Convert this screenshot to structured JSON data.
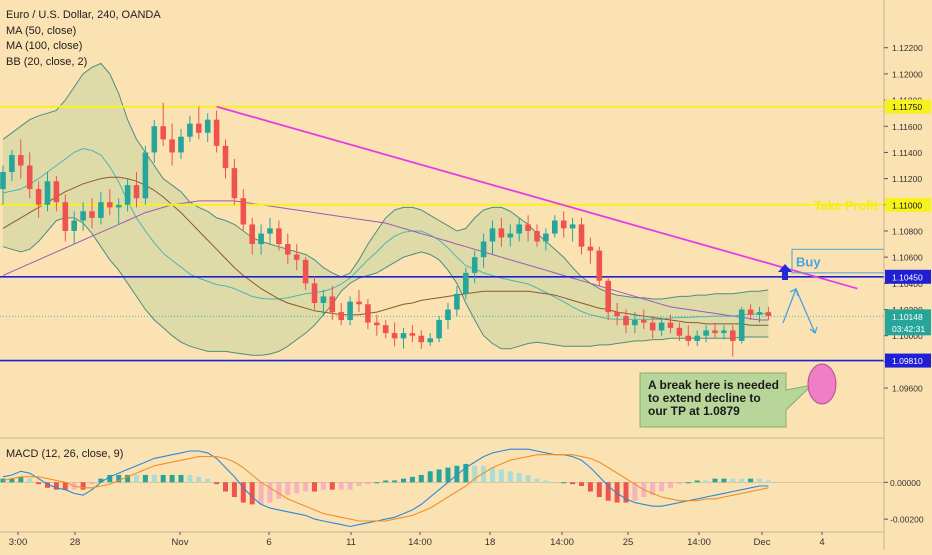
{
  "title": "Euro / U.S. Dollar, 240, OANDA",
  "indicators": [
    "MA (50, close)",
    "MA (100, close)",
    "BB (20, close, 2)"
  ],
  "macd_label": "MACD (12, 26, close, 9)",
  "colors": {
    "background": "#fbe2b3",
    "up_candle": "#26a69a",
    "down_candle": "#ef5350",
    "resistance_line": "#f7f21e",
    "support_line": "#1f1fd6",
    "trendline": "#e83be6",
    "ma50": "#8d5a2b",
    "ma100": "#9b5ab8",
    "bb_basis": "#4fb6ab",
    "bb_band": "#4e8d7e",
    "bb_fill": "#d6d8a5",
    "note_fill": "#b8d59a",
    "buy_arrow": "#1f2bd6",
    "target_circle": "#ee7ec5",
    "macd_line": "#2a8ad8",
    "signal_line": "#f0902a",
    "hist_up": "#26a69a",
    "hist_down": "#ef5350"
  },
  "chart_data": [
    {
      "type": "candlestick",
      "symbol": "Euro / U.S. Dollar",
      "interval": "240",
      "source": "OANDA",
      "y_range": [
        1.0944,
        1.1232
      ],
      "y_ticks": [
        1.122,
        1.12,
        1.118,
        1.116,
        1.114,
        1.112,
        1.11,
        1.108,
        1.106,
        1.104,
        1.102,
        1.1,
        1.098,
        1.096
      ],
      "y_tick_labels": [
        "1.12200",
        "1.12000",
        "1.11800",
        "1.11600",
        "1.11400",
        "1.11200",
        "1.11000",
        "1.10800",
        "1.10600",
        "1.10400",
        "1.10200",
        "1.10000",
        "1.09800",
        "1.09600"
      ],
      "x_tick_labels": [
        "3:00",
        "28",
        "Nov",
        "6",
        "11",
        "14:00",
        "18",
        "14:00",
        "25",
        "14:00",
        "Dec",
        "4"
      ],
      "price_levels": [
        {
          "label": "1.11750",
          "value": 1.1175,
          "kind": "resistance"
        },
        {
          "label": "1.11000",
          "value": 1.11,
          "kind": "take-profit"
        },
        {
          "label": "1.10450",
          "value": 1.1045,
          "kind": "support"
        },
        {
          "label": "1.09810",
          "value": 1.0981,
          "kind": "support"
        }
      ],
      "current_price": {
        "label": "1.10148",
        "value": 1.10148,
        "countdown": "03:42:31"
      },
      "trendline": {
        "from": {
          "bar": 24,
          "price": 1.1175
        },
        "to": {
          "bar": 96,
          "price": 1.1036
        }
      },
      "annotations": {
        "take_profit": "Take Profit",
        "buy": "Buy",
        "note": "A break here is needed\nto extend decline to\nour TP at 1.0879"
      },
      "candles_ohlc": [
        [
          1.1112,
          1.113,
          1.11,
          1.1125
        ],
        [
          1.1125,
          1.1142,
          1.1118,
          1.1138
        ],
        [
          1.1138,
          1.115,
          1.112,
          1.113
        ],
        [
          1.113,
          1.114,
          1.1105,
          1.1112
        ],
        [
          1.1112,
          1.1118,
          1.109,
          1.11
        ],
        [
          1.11,
          1.1125,
          1.1095,
          1.1118
        ],
        [
          1.1118,
          1.1122,
          1.1095,
          1.1102
        ],
        [
          1.1102,
          1.1108,
          1.1072,
          1.108
        ],
        [
          1.108,
          1.1095,
          1.107,
          1.1088
        ],
        [
          1.1088,
          1.1102,
          1.108,
          1.1095
        ],
        [
          1.1095,
          1.1105,
          1.1082,
          1.109
        ],
        [
          1.109,
          1.111,
          1.1085,
          1.1102
        ],
        [
          1.1102,
          1.1112,
          1.1092,
          1.1098
        ],
        [
          1.1098,
          1.1105,
          1.1085,
          1.11
        ],
        [
          1.11,
          1.112,
          1.1095,
          1.1115
        ],
        [
          1.1115,
          1.1125,
          1.1098,
          1.1105
        ],
        [
          1.1105,
          1.1145,
          1.11,
          1.114
        ],
        [
          1.114,
          1.1165,
          1.1132,
          1.116
        ],
        [
          1.116,
          1.1178,
          1.1145,
          1.115
        ],
        [
          1.115,
          1.1162,
          1.113,
          1.114
        ],
        [
          1.114,
          1.1158,
          1.1135,
          1.1152
        ],
        [
          1.1152,
          1.1168,
          1.1148,
          1.1162
        ],
        [
          1.1162,
          1.1175,
          1.115,
          1.1155
        ],
        [
          1.1155,
          1.117,
          1.1148,
          1.1165
        ],
        [
          1.1165,
          1.1172,
          1.114,
          1.1145
        ],
        [
          1.1145,
          1.115,
          1.112,
          1.1128
        ],
        [
          1.1128,
          1.1135,
          1.11,
          1.1105
        ],
        [
          1.1105,
          1.1112,
          1.108,
          1.1085
        ],
        [
          1.1085,
          1.109,
          1.1062,
          1.107
        ],
        [
          1.107,
          1.1085,
          1.1062,
          1.1078
        ],
        [
          1.1078,
          1.109,
          1.107,
          1.1082
        ],
        [
          1.1082,
          1.1088,
          1.1065,
          1.107
        ],
        [
          1.107,
          1.1078,
          1.1055,
          1.1062
        ],
        [
          1.1062,
          1.107,
          1.105,
          1.1058
        ],
        [
          1.1058,
          1.106,
          1.1035,
          1.104
        ],
        [
          1.104,
          1.1045,
          1.102,
          1.1025
        ],
        [
          1.1025,
          1.1035,
          1.1015,
          1.103
        ],
        [
          1.103,
          1.1038,
          1.1012,
          1.1018
        ],
        [
          1.1018,
          1.1025,
          1.1008,
          1.1012
        ],
        [
          1.1012,
          1.103,
          1.1008,
          1.1026
        ],
        [
          1.1026,
          1.1035,
          1.1018,
          1.1024
        ],
        [
          1.1024,
          1.1028,
          1.1005,
          1.101
        ],
        [
          1.101,
          1.1016,
          1.1,
          1.1008
        ],
        [
          1.1008,
          1.1012,
          1.0998,
          1.1002
        ],
        [
          1.1002,
          1.101,
          1.0992,
          1.0998
        ],
        [
          1.0998,
          1.1006,
          1.099,
          1.1002
        ],
        [
          1.1002,
          1.1008,
          1.0995,
          1.1
        ],
        [
          1.1,
          1.1004,
          1.099,
          1.0995
        ],
        [
          1.0995,
          1.1002,
          1.0992,
          1.0998
        ],
        [
          1.0998,
          1.1015,
          1.0995,
          1.1012
        ],
        [
          1.1012,
          1.1025,
          1.1005,
          1.102
        ],
        [
          1.102,
          1.1038,
          1.1015,
          1.1032
        ],
        [
          1.1032,
          1.1052,
          1.1028,
          1.1048
        ],
        [
          1.1048,
          1.1065,
          1.104,
          1.106
        ],
        [
          1.106,
          1.1078,
          1.1052,
          1.1072
        ],
        [
          1.1072,
          1.1088,
          1.1062,
          1.1082
        ],
        [
          1.1082,
          1.109,
          1.1068,
          1.1075
        ],
        [
          1.1075,
          1.1085,
          1.1068,
          1.1078
        ],
        [
          1.1078,
          1.109,
          1.1072,
          1.1085
        ],
        [
          1.1085,
          1.1092,
          1.1072,
          1.108
        ],
        [
          1.108,
          1.1085,
          1.1068,
          1.1072
        ],
        [
          1.1072,
          1.1082,
          1.1065,
          1.1078
        ],
        [
          1.1078,
          1.1092,
          1.1075,
          1.1088
        ],
        [
          1.1088,
          1.1095,
          1.1075,
          1.1082
        ],
        [
          1.1082,
          1.109,
          1.1072,
          1.1085
        ],
        [
          1.1085,
          1.109,
          1.1062,
          1.1068
        ],
        [
          1.1068,
          1.1075,
          1.1055,
          1.1065
        ],
        [
          1.1065,
          1.1068,
          1.1038,
          1.1042
        ],
        [
          1.1042,
          1.1045,
          1.1012,
          1.1018
        ],
        [
          1.1018,
          1.1025,
          1.1008,
          1.1015
        ],
        [
          1.1015,
          1.102,
          1.1002,
          1.1008
        ],
        [
          1.1008,
          1.1018,
          1.1002,
          1.1012
        ],
        [
          1.1012,
          1.102,
          1.1005,
          1.101
        ],
        [
          1.101,
          1.1015,
          1.0998,
          1.1004
        ],
        [
          1.1004,
          1.1014,
          1.1,
          1.101
        ],
        [
          1.101,
          1.1016,
          1.1002,
          1.1006
        ],
        [
          1.1006,
          1.101,
          1.0996,
          1.1
        ],
        [
          1.1,
          1.1008,
          1.0992,
          1.0996
        ],
        [
          1.0996,
          1.1004,
          1.0992,
          1.1
        ],
        [
          1.1,
          1.1008,
          1.0995,
          1.1004
        ],
        [
          1.1004,
          1.101,
          1.0998,
          1.1002
        ],
        [
          1.1002,
          1.1008,
          1.0997,
          1.1004
        ],
        [
          1.1004,
          1.1008,
          1.0984,
          1.0996
        ],
        [
          1.0996,
          1.1022,
          1.0994,
          1.102
        ],
        [
          1.102,
          1.1024,
          1.1012,
          1.1016
        ],
        [
          1.1016,
          1.1022,
          1.101,
          1.1018
        ],
        [
          1.1018,
          1.1022,
          1.1012,
          1.1015
        ]
      ],
      "ma50": [
        1.1082,
        1.1086,
        1.109,
        1.1094,
        1.1098,
        1.1102,
        1.1106,
        1.111,
        1.1113,
        1.1116,
        1.1118,
        1.112,
        1.1121,
        1.1121,
        1.112,
        1.1118,
        1.1115,
        1.1111,
        1.1106,
        1.11,
        1.1094,
        1.1087,
        1.108,
        1.1073,
        1.1066,
        1.1059,
        1.1052,
        1.1046,
        1.1041,
        1.1036,
        1.1032,
        1.1028,
        1.1025,
        1.1023,
        1.1021,
        1.1019,
        1.1018,
        1.1017,
        1.1016,
        1.1016,
        1.1016,
        1.1017,
        1.1018,
        1.102,
        1.1022,
        1.1024,
        1.1025,
        1.1027,
        1.1028,
        1.1029,
        1.103,
        1.1031,
        1.1032,
        1.1033,
        1.1034,
        1.1034,
        1.1034,
        1.1034,
        1.1034,
        1.1034,
        1.1033,
        1.1032,
        1.1031,
        1.1029,
        1.1027,
        1.1025,
        1.1023,
        1.1021,
        1.102,
        1.1018,
        1.1017,
        1.1016,
        1.1015,
        1.1014,
        1.1013,
        1.1012,
        1.1011,
        1.101,
        1.101,
        1.1009,
        1.1009,
        1.1009,
        1.1009,
        1.1009,
        1.1008,
        1.1008,
        1.1008
      ],
      "ma100": [
        1.1046,
        1.1049,
        1.1052,
        1.1055,
        1.1058,
        1.1061,
        1.1064,
        1.1067,
        1.107,
        1.1073,
        1.1076,
        1.1079,
        1.1082,
        1.1085,
        1.1088,
        1.1091,
        1.1094,
        1.1096,
        1.1098,
        1.11,
        1.1101,
        1.1102,
        1.1103,
        1.1103,
        1.1103,
        1.1103,
        1.1103,
        1.1102,
        1.1101,
        1.11,
        1.1099,
        1.1098,
        1.1097,
        1.1096,
        1.1095,
        1.1094,
        1.1093,
        1.1092,
        1.1091,
        1.109,
        1.1089,
        1.1088,
        1.1087,
        1.1086,
        1.1084,
        1.1082,
        1.108,
        1.1078,
        1.1076,
        1.1074,
        1.1072,
        1.107,
        1.1068,
        1.1066,
        1.1064,
        1.1062,
        1.106,
        1.1058,
        1.1056,
        1.1054,
        1.1052,
        1.105,
        1.1048,
        1.1046,
        1.1044,
        1.1042,
        1.104,
        1.1038,
        1.1036,
        1.1034,
        1.1032,
        1.103,
        1.1028,
        1.1026,
        1.1024,
        1.1022,
        1.1021,
        1.102,
        1.1019,
        1.1018,
        1.1017,
        1.1016,
        1.1015,
        1.1014,
        1.1013,
        1.1012,
        1.1012
      ],
      "bb_upper": [
        1.115,
        1.1155,
        1.116,
        1.1165,
        1.1168,
        1.117,
        1.1172,
        1.118,
        1.119,
        1.12,
        1.1205,
        1.1208,
        1.12,
        1.1185,
        1.1165,
        1.115,
        1.114,
        1.113,
        1.112,
        1.1115,
        1.111,
        1.1102,
        1.1098,
        1.1095,
        1.109,
        1.1088,
        1.1085,
        1.108,
        1.1075,
        1.1072,
        1.107,
        1.1068,
        1.1066,
        1.1064,
        1.1062,
        1.1058,
        1.1052,
        1.1048,
        1.1045,
        1.1048,
        1.1058,
        1.107,
        1.108,
        1.109,
        1.1096,
        1.1098,
        1.1098,
        1.1096,
        1.1092,
        1.1088,
        1.1084,
        1.108,
        1.1082,
        1.109,
        1.1096,
        1.1098,
        1.1098,
        1.1095,
        1.109,
        1.1085,
        1.1078,
        1.1072,
        1.1066,
        1.106,
        1.1052,
        1.1045,
        1.104,
        1.1036,
        1.1033,
        1.1031,
        1.103,
        1.1029,
        1.1029,
        1.1028,
        1.1028,
        1.1029,
        1.103,
        1.103,
        1.1031,
        1.1031,
        1.1032,
        1.1032,
        1.1032,
        1.1033,
        1.1034,
        1.1034,
        1.1035
      ],
      "bb_lower": [
        1.1068,
        1.1066,
        1.1064,
        1.1066,
        1.1072,
        1.108,
        1.1088,
        1.109,
        1.109,
        1.1086,
        1.1078,
        1.1068,
        1.1058,
        1.105,
        1.104,
        1.103,
        1.102,
        1.1012,
        1.1006,
        1.1,
        1.0995,
        1.0992,
        1.099,
        1.0988,
        1.0988,
        1.0988,
        1.0987,
        1.0986,
        1.0985,
        1.0985,
        1.0986,
        1.0988,
        1.0992,
        1.0997,
        1.1002,
        1.1008,
        1.1016,
        1.1024,
        1.1034,
        1.104,
        1.1044,
        1.1046,
        1.1048,
        1.1052,
        1.1056,
        1.106,
        1.1062,
        1.1064,
        1.1062,
        1.1058,
        1.105,
        1.104,
        1.1025,
        1.1012,
        1.1,
        1.0994,
        1.099,
        1.099,
        1.0992,
        1.0994,
        1.0995,
        1.0994,
        1.0993,
        1.0992,
        1.0992,
        1.0992,
        1.0992,
        1.0993,
        1.0993,
        1.0994,
        1.0995,
        1.0996,
        1.0996,
        1.0997,
        1.0997,
        1.0998,
        1.0998,
        1.0998,
        1.0998,
        1.0998,
        1.0998,
        1.0998,
        1.0998,
        1.0999,
        1.0999,
        1.0999,
        1.0999
      ]
    },
    {
      "type": "macd",
      "label": "MACD (12, 26, close, 9)",
      "y_range": [
        -0.0027,
        0.0023
      ],
      "y_ticks": [
        0.0,
        -0.002
      ],
      "y_tick_labels": [
        "0.00000",
        "-0.00200"
      ],
      "macd": [
        0.0003,
        0.0004,
        0.0006,
        0.0005,
        0.0002,
        -0.0001,
        -0.0003,
        -0.0004,
        -0.0006,
        -0.0007,
        -0.0004,
        0.0,
        0.0003,
        0.0005,
        0.0007,
        0.0009,
        0.0011,
        0.0013,
        0.0014,
        0.0015,
        0.0016,
        0.0017,
        0.0017,
        0.0016,
        0.0013,
        0.0008,
        0.0003,
        -0.0003,
        -0.0008,
        -0.0012,
        -0.0014,
        -0.0015,
        -0.0016,
        -0.0017,
        -0.0018,
        -0.002,
        -0.0021,
        -0.0022,
        -0.0023,
        -0.0024,
        -0.0023,
        -0.0022,
        -0.0021,
        -0.002,
        -0.0019,
        -0.0017,
        -0.0015,
        -0.0012,
        -0.0008,
        -0.0004,
        0.0,
        0.0004,
        0.0008,
        0.0011,
        0.0014,
        0.0016,
        0.0017,
        0.0018,
        0.0018,
        0.0018,
        0.0017,
        0.0016,
        0.0015,
        0.0015,
        0.0014,
        0.0012,
        0.0008,
        0.0003,
        -0.0002,
        -0.0006,
        -0.0009,
        -0.0011,
        -0.0012,
        -0.0013,
        -0.0013,
        -0.0012,
        -0.0011,
        -0.001,
        -0.0009,
        -0.0008,
        -0.0007,
        -0.0006,
        -0.0005,
        -0.0004,
        -0.0003,
        -0.0002,
        -0.0002
      ],
      "signal": [
        0.0001,
        0.0002,
        0.0003,
        0.0003,
        0.0003,
        0.0002,
        0.0001,
        0.0,
        -0.0002,
        -0.0003,
        -0.0003,
        -0.0002,
        -0.0001,
        0.0001,
        0.0003,
        0.0005,
        0.0007,
        0.0009,
        0.001,
        0.0011,
        0.0012,
        0.0013,
        0.0014,
        0.0014,
        0.0014,
        0.0013,
        0.0011,
        0.0008,
        0.0004,
        0.0,
        -0.0003,
        -0.0006,
        -0.0009,
        -0.0011,
        -0.0013,
        -0.0015,
        -0.0017,
        -0.0018,
        -0.0019,
        -0.002,
        -0.0021,
        -0.0021,
        -0.0021,
        -0.0021,
        -0.002,
        -0.0019,
        -0.0018,
        -0.0016,
        -0.0014,
        -0.0011,
        -0.0008,
        -0.0005,
        -0.0002,
        0.0002,
        0.0005,
        0.0008,
        0.001,
        0.0012,
        0.0013,
        0.0014,
        0.0015,
        0.0015,
        0.0015,
        0.0015,
        0.0015,
        0.0014,
        0.0013,
        0.0011,
        0.0008,
        0.0005,
        0.0002,
        -0.0001,
        -0.0004,
        -0.0006,
        -0.0008,
        -0.0009,
        -0.001,
        -0.001,
        -0.001,
        -0.0009,
        -0.0009,
        -0.0008,
        -0.0007,
        -0.0006,
        -0.0005,
        -0.0004,
        -0.0003
      ]
    }
  ]
}
